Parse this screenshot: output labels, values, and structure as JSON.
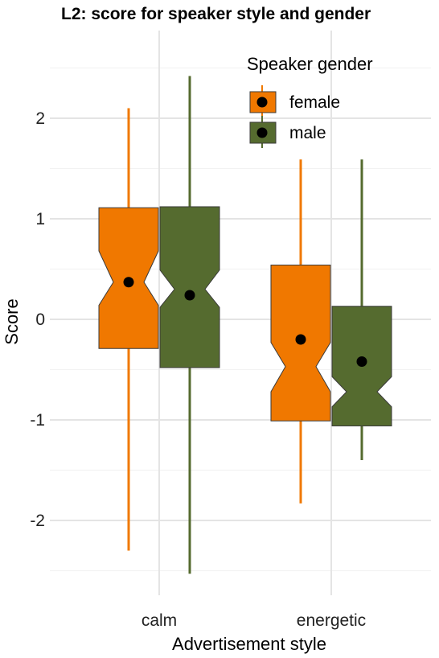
{
  "chart_data": {
    "type": "boxplot",
    "title": "L2: score for speaker style and gender",
    "xlabel": "Advertisement style",
    "ylabel": "Score",
    "categories": [
      "calm",
      "energetic"
    ],
    "ylim": [
      -2.55,
      2.45
    ],
    "yticks": [
      -2,
      -1,
      0,
      1,
      2
    ],
    "grid": true,
    "legend": {
      "title": "Speaker gender",
      "position": "top-right"
    },
    "series": [
      {
        "name": "female",
        "color": "#f07800",
        "boxes": [
          {
            "category": "calm",
            "min": -2.3,
            "q1": -0.29,
            "median": 0.37,
            "q3": 1.11,
            "max": 2.1,
            "notch_low": 0.14,
            "notch_high": 0.68,
            "mean": 0.37
          },
          {
            "category": "energetic",
            "min": -1.83,
            "q1": -1.01,
            "median": -0.47,
            "q3": 0.54,
            "max": 1.59,
            "notch_low": -0.72,
            "notch_high": -0.23,
            "mean": -0.2
          }
        ]
      },
      {
        "name": "male",
        "color": "#556b2f",
        "boxes": [
          {
            "category": "calm",
            "min": -2.53,
            "q1": -0.48,
            "median": 0.3,
            "q3": 1.12,
            "max": 2.42,
            "notch_low": 0.12,
            "notch_high": 0.49,
            "mean": 0.24
          },
          {
            "category": "energetic",
            "min": -1.4,
            "q1": -1.06,
            "median": -0.72,
            "q3": 0.13,
            "max": 1.59,
            "notch_low": -0.87,
            "notch_high": -0.57,
            "mean": -0.42
          }
        ]
      }
    ]
  }
}
